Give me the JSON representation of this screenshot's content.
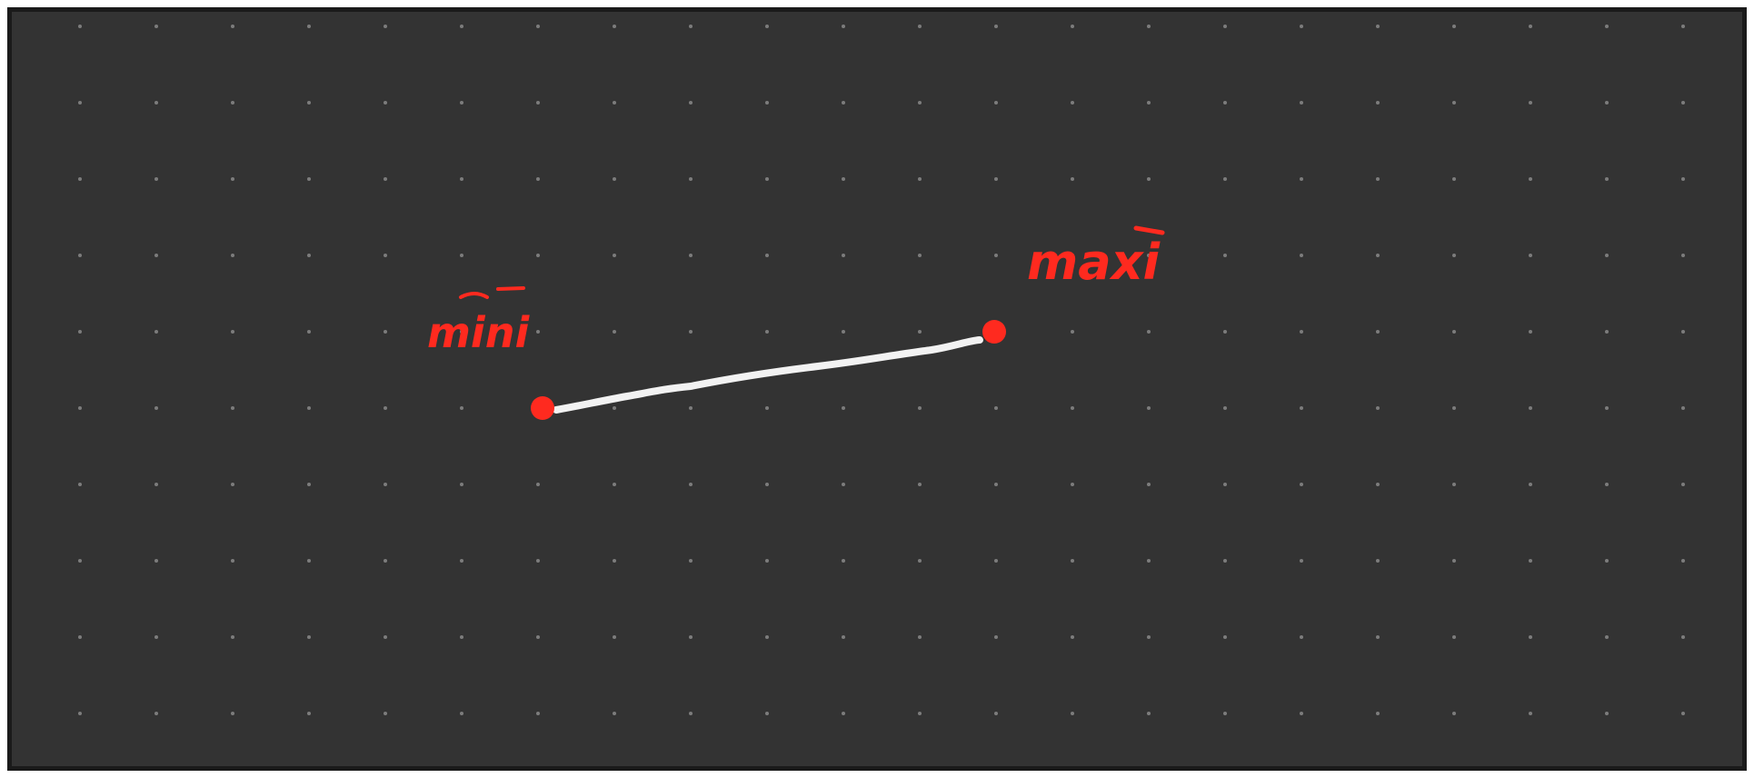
{
  "canvas": {
    "background_color": "#333333",
    "border_color": "#ffffff",
    "grid_dot_color": "#7c7c7c",
    "grid": "dotted"
  },
  "segment": {
    "stroke_color": "#f2f2f2",
    "endpoint_color": "#ff2a1f",
    "start_label": "mini",
    "end_label": "maxi"
  }
}
